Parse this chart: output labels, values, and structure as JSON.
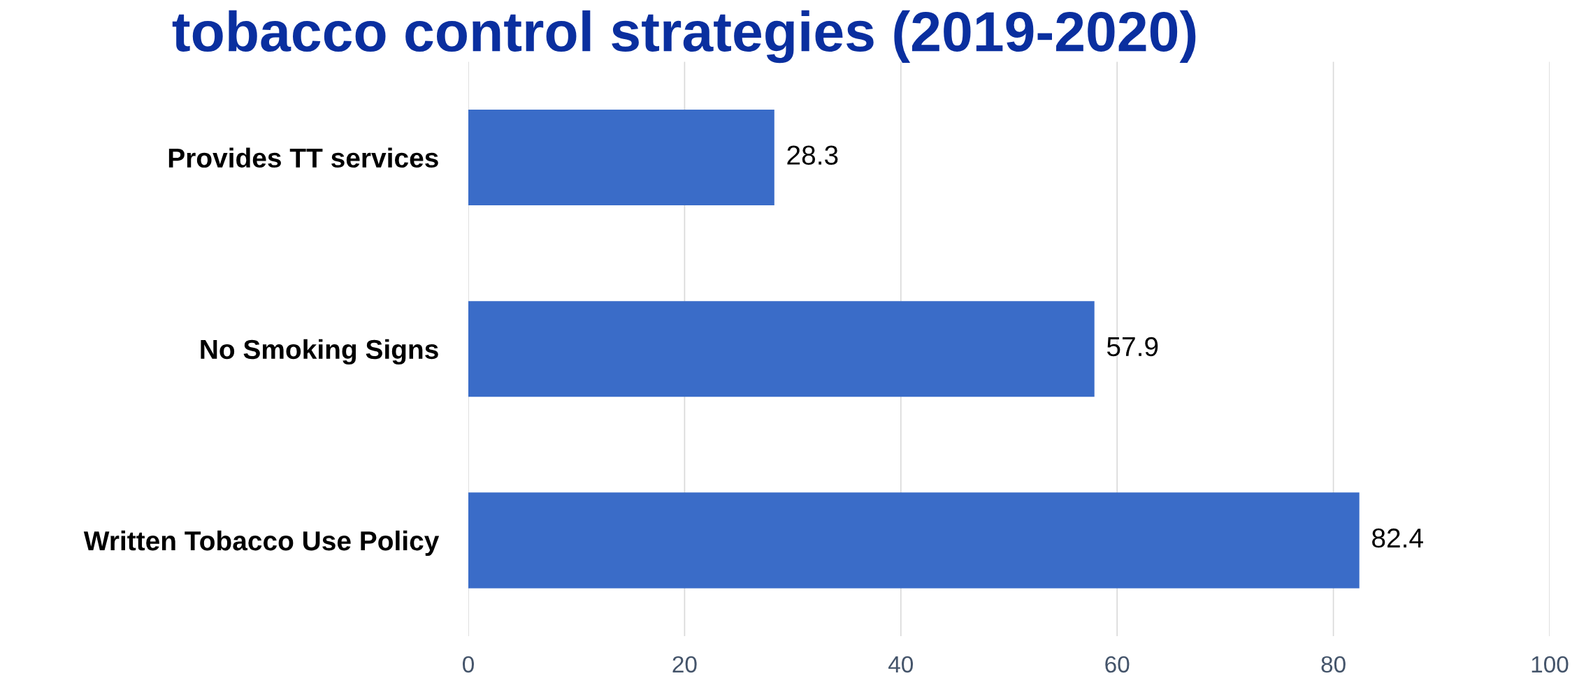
{
  "chart_data": {
    "type": "bar",
    "orientation": "horizontal",
    "title": "tobacco control strategies (2019-2020)",
    "categories": [
      "Provides TT services",
      "No Smoking Signs",
      "Written Tobacco Use Policy"
    ],
    "values": [
      28.3,
      57.9,
      82.4
    ],
    "color": "#3a6cc8",
    "data_labels": true,
    "xlim": [
      0,
      100
    ],
    "xticks": [
      0,
      20,
      40,
      60,
      80,
      100
    ],
    "grid": "x",
    "legend": false
  }
}
